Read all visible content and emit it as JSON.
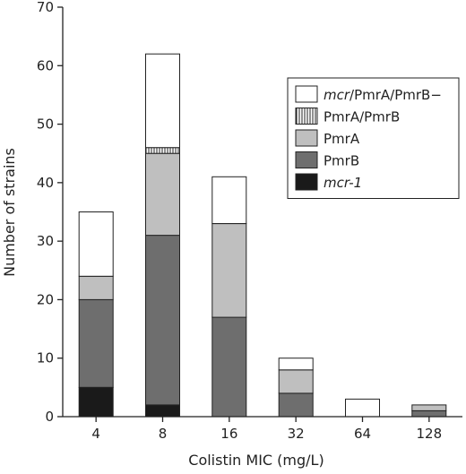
{
  "chart_data": {
    "type": "bar",
    "stacked": true,
    "title": "",
    "xlabel": "Colistin MIC (mg/L)",
    "ylabel": "Number of strains",
    "ylim": [
      0,
      70
    ],
    "yticks": [
      0,
      10,
      20,
      30,
      40,
      50,
      60,
      70
    ],
    "categories": [
      "4",
      "8",
      "16",
      "32",
      "64",
      "128"
    ],
    "series": [
      {
        "name": "mcr-1",
        "color": "#1a1a1a",
        "pattern": "solid",
        "values": [
          5,
          2,
          0,
          0,
          0,
          0
        ]
      },
      {
        "name": "PmrB",
        "color": "#6e6e6e",
        "pattern": "solid",
        "values": [
          15,
          29,
          17,
          4,
          0,
          1
        ]
      },
      {
        "name": "PmrA",
        "color": "#bfbfbf",
        "pattern": "solid",
        "values": [
          4,
          14,
          16,
          4,
          0,
          1
        ]
      },
      {
        "name": "PmrA/PmrB",
        "color": "#ffffff",
        "pattern": "vertical-stripes",
        "values": [
          0,
          1,
          0,
          0,
          0,
          0
        ]
      },
      {
        "name": "mcr/PmrA/PmrB−",
        "color": "#ffffff",
        "pattern": "solid",
        "values": [
          11,
          16,
          8,
          2,
          3,
          0
        ]
      }
    ],
    "legend": {
      "placement": "top-right",
      "order": [
        "mcr/PmrA/PmrB−",
        "PmrA/PmrB",
        "PmrA",
        "PmrB",
        "mcr-1"
      ],
      "items": [
        {
          "series": "mcr/PmrA/PmrB−",
          "italic_part": "mcr",
          "rest": "/PmrA/PmrB−"
        },
        {
          "series": "PmrA/PmrB",
          "italic_part": "",
          "rest": "PmrA/PmrB"
        },
        {
          "series": "PmrA",
          "italic_part": "",
          "rest": "PmrA"
        },
        {
          "series": "PmrB",
          "italic_part": "",
          "rest": "PmrB"
        },
        {
          "series": "mcr-1",
          "italic_part": "mcr-1",
          "rest": ""
        }
      ]
    },
    "grid": false
  }
}
